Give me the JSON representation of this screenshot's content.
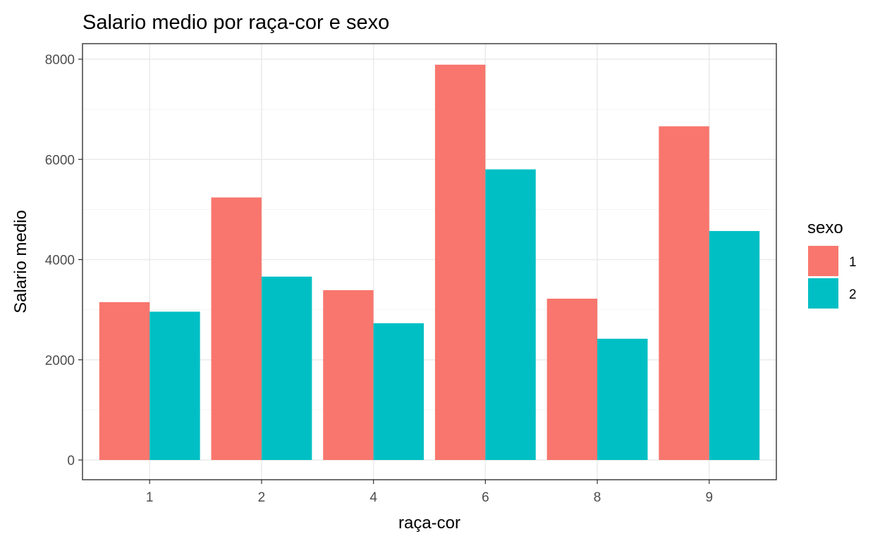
{
  "chart_data": {
    "type": "bar",
    "title": "Salario medio por raça-cor e sexo",
    "xlabel": "raça-cor",
    "ylabel": "Salario medio",
    "categories": [
      "1",
      "2",
      "4",
      "6",
      "8",
      "9"
    ],
    "series": [
      {
        "name": "1",
        "color": "#F8766D",
        "values": [
          3150,
          5240,
          3390,
          7890,
          3220,
          6660
        ]
      },
      {
        "name": "2",
        "color": "#00BFC4",
        "values": [
          2960,
          3660,
          2730,
          5800,
          2420,
          4570
        ]
      }
    ],
    "ylim": [
      0,
      8000
    ],
    "yticks": [
      0,
      2000,
      4000,
      6000,
      8000
    ],
    "ytick_labels": [
      "0",
      "2000",
      "4000",
      "6000",
      "8000"
    ],
    "grid": true,
    "legend": {
      "title": "sexo",
      "position": "right"
    }
  }
}
